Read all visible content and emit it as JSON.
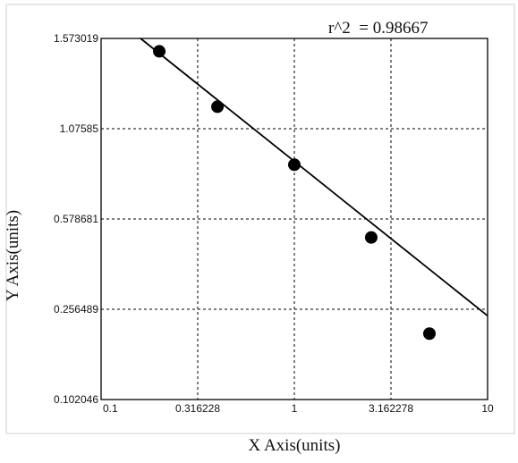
{
  "chart_data": {
    "type": "scatter",
    "xscale": "log",
    "xlim": [
      0.1,
      10
    ],
    "ylim": [
      0.102046,
      1.573019
    ],
    "xticks": [
      0.1,
      0.316228,
      1,
      3.162278,
      10
    ],
    "xtick_labels": [
      "0.1",
      "0.316228",
      "1",
      "3.162278",
      "10"
    ],
    "yticks": [
      0.102046,
      0.256489,
      0.578681,
      1.07585,
      1.573019
    ],
    "ytick_labels": [
      "0.102046",
      "0.256489",
      "0.578681",
      "1.07585",
      "1.573019"
    ],
    "xlabel": "X Axis(units)",
    "ylabel": "Y Axis(units)",
    "annotation": "r^2  = 0.98667",
    "grid": "dashed",
    "legend": "none",
    "series": [
      {
        "points": [
          {
            "x": 0.2,
            "y": 1.49
          },
          {
            "x": 0.4,
            "y": 1.18
          },
          {
            "x": 1.0,
            "y": 0.84
          },
          {
            "x": 2.5,
            "y": 0.49
          },
          {
            "x": 5.0,
            "y": 0.2
          }
        ]
      }
    ],
    "fit_line": {
      "start": {
        "x": 0.16,
        "y": 1.573019
      },
      "end": {
        "x": 10,
        "y": 0.24
      }
    }
  }
}
